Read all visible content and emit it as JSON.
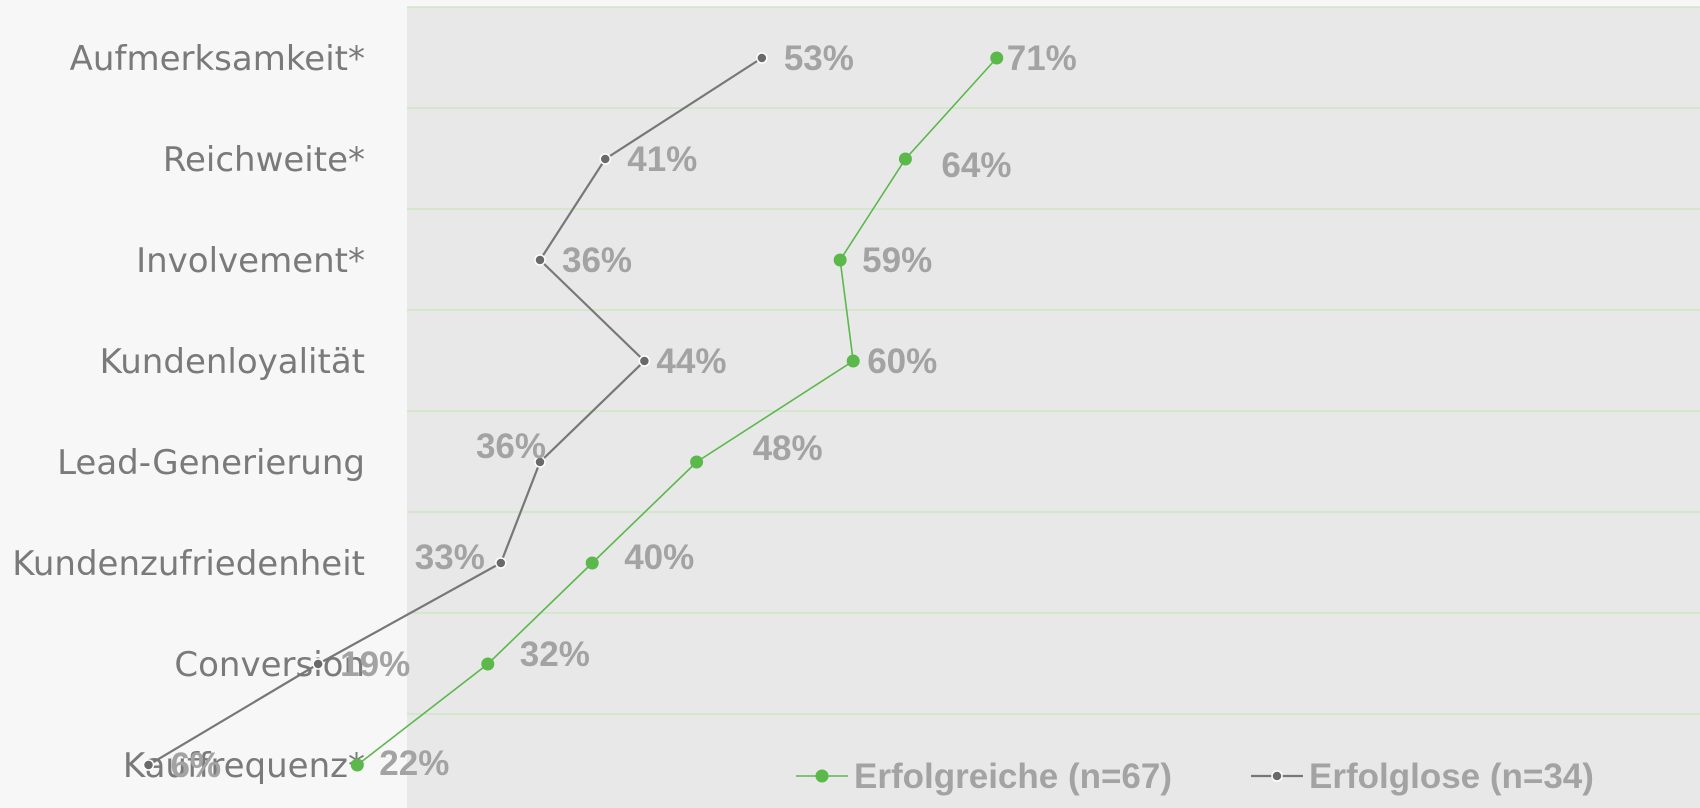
{
  "chart_data": {
    "type": "line",
    "orientation": "horizontal-categories",
    "categories": [
      "Aufmerksamkeit*",
      "Reichweite*",
      "Involvement*",
      "Kundenloyalität",
      "Lead-Generierung",
      "Kundenzufriedenheit",
      "Conversion",
      "Kauffrequenz*"
    ],
    "series": [
      {
        "name": "Erfolgreiche (n=67)",
        "values": [
          71,
          64,
          59,
          60,
          48,
          40,
          32,
          22
        ],
        "labels": [
          "71%",
          "64%",
          "59%",
          "60%",
          "48%",
          "40%",
          "32%",
          "22%"
        ],
        "color": "#5bb84a"
      },
      {
        "name": "Erfolglose (n=34)",
        "values": [
          53,
          41,
          36,
          44,
          36,
          33,
          19,
          6
        ],
        "labels": [
          "53%",
          "41%",
          "36%",
          "44%",
          "36%",
          "33%",
          "19%",
          "6%"
        ],
        "color": "#777777"
      }
    ],
    "xlim": [
      0,
      100
    ],
    "grid": true,
    "legend": "bottom-right",
    "plot_background": "#e8e8e8",
    "grid_color": "#c8e6bd"
  }
}
